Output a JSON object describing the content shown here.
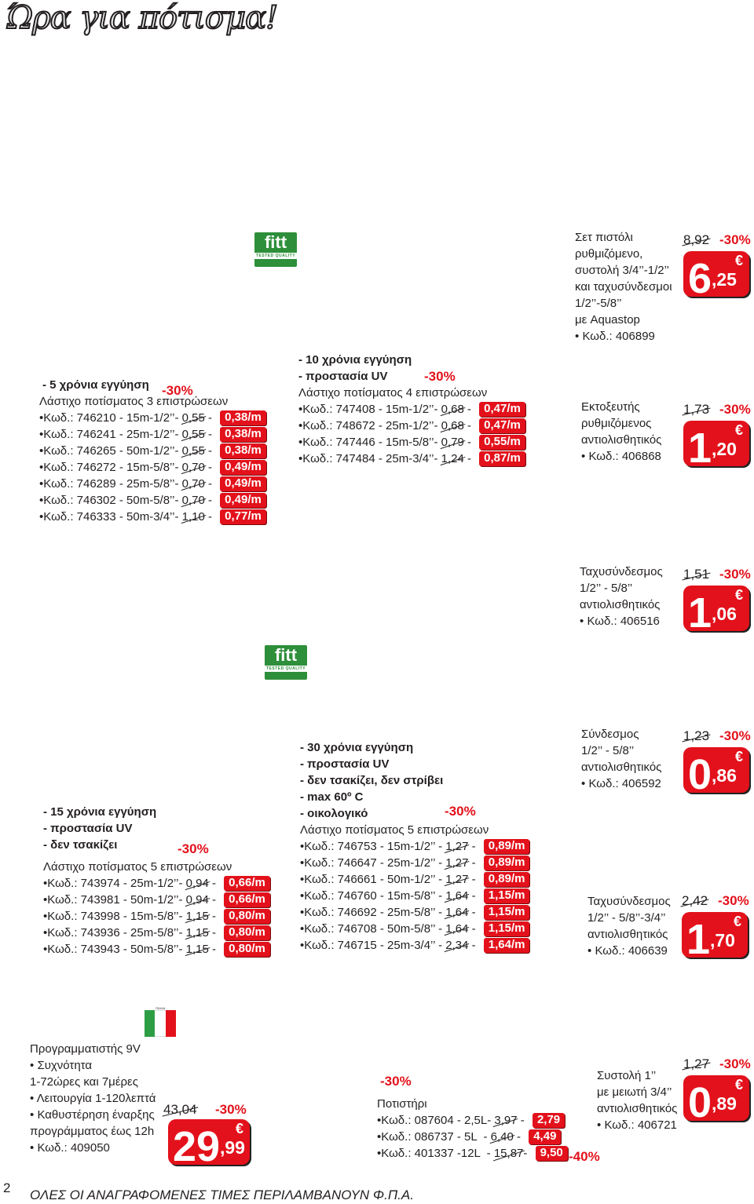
{
  "title": "Ώρα για πότισμα!",
  "brand": {
    "logo": "fitt",
    "tagline": "TESTED QUALITY"
  },
  "bullet": "•",
  "discount": "-30%",
  "discount40": "-40%",
  "hose3": {
    "h1": "- 5 χρόνια εγγύηση",
    "name": "Λάστιχο ποτίσματος 3 επιστρώσεων",
    "rows": [
      {
        "code": "Κωδ.: 746210 - 15m-1/2’’- ",
        "old": "0,55",
        "sep": " - ",
        "new": "0,38/m"
      },
      {
        "code": "Κωδ.: 746241 - 25m-1/2’’- ",
        "old": "0,55",
        "sep": " - ",
        "new": "0,38/m"
      },
      {
        "code": "Κωδ.: 746265 - 50m-1/2’’- ",
        "old": "0,55",
        "sep": " - ",
        "new": "0,38/m"
      },
      {
        "code": "Κωδ.: 746272 - 15m-5/8’’- ",
        "old": "0,70",
        "sep": " - ",
        "new": "0,49/m"
      },
      {
        "code": "Κωδ.: 746289 - 25m-5/8’’- ",
        "old": "0,70",
        "sep": " - ",
        "new": "0,49/m"
      },
      {
        "code": "Κωδ.: 746302 - 50m-5/8’’- ",
        "old": "0,70",
        "sep": " - ",
        "new": "0,49/m"
      },
      {
        "code": "Κωδ.: 746333 - 50m-3/4’’- ",
        "old": "1,10",
        "sep": " - ",
        "new": "0,77/m"
      }
    ]
  },
  "hose4": {
    "h1": "- 10 χρόνια εγγύηση",
    "h2": "- προστασία UV",
    "name": "Λάστιχο ποτίσματος 4 επιστρώσεων",
    "rows": [
      {
        "code": "Κωδ.: 747408 - 15m-1/2’’- ",
        "old": "0,68",
        "sep": " - ",
        "new": "0,47/m"
      },
      {
        "code": "Κωδ.: 748672 - 25m-1/2’’- ",
        "old": "0,68",
        "sep": " - ",
        "new": "0,47/m"
      },
      {
        "code": "Κωδ.: 747446 - 15m-5/8’’- ",
        "old": "0,79",
        "sep": " - ",
        "new": "0,55/m"
      },
      {
        "code": "Κωδ.: 747484 - 25m-3/4’’- ",
        "old": "1,24",
        "sep": " - ",
        "new": "0,87/m"
      }
    ]
  },
  "hose5a": {
    "h1": "- 15 χρόνια εγγύηση",
    "h2": "- προστασία UV",
    "h3": "- δεν τσακίζει",
    "name": "Λάστιχο ποτίσματος 5 επιστρώσεων",
    "rows": [
      {
        "code": "Κωδ.: 743974 - 25m-1/2’’- ",
        "old": "0,94",
        "sep": " - ",
        "new": "0,66/m"
      },
      {
        "code": "Κωδ.: 743981 - 50m-1/2’’- ",
        "old": "0,94",
        "sep": " - ",
        "new": "0,66/m"
      },
      {
        "code": "Κωδ.: 743998 - 15m-5/8’’- ",
        "old": "1,15",
        "sep": " - ",
        "new": "0,80/m"
      },
      {
        "code": "Κωδ.: 743936 - 25m-5/8’’- ",
        "old": "1,15",
        "sep": " - ",
        "new": "0,80/m"
      },
      {
        "code": "Κωδ.: 743943 - 50m-5/8’’- ",
        "old": "1,15",
        "sep": " - ",
        "new": "0,80/m"
      }
    ]
  },
  "hose5b": {
    "h1": "- 30 χρόνια εγγύηση",
    "h2": "- προστασία UV",
    "h3": "- δεν τσακίζει, δεν στρίβει",
    "h4": "- max 60º C",
    "h5": "- οικολογικό",
    "name": "Λάστιχο ποτίσματος 5 επιστρώσεων",
    "rows": [
      {
        "code": "Κωδ.: 746753 - 15m-1/2’’ - ",
        "old": "1,27",
        "sep": " - ",
        "new": "0,89/m"
      },
      {
        "code": "Κωδ.: 746647 - 25m-1/2’’ - ",
        "old": "1,27",
        "sep": " - ",
        "new": "0,89/m"
      },
      {
        "code": "Κωδ.: 746661 - 50m-1/2’’ - ",
        "old": "1,27",
        "sep": " - ",
        "new": "0,89/m"
      },
      {
        "code": "Κωδ.: 746760 - 15m-5/8’’ - ",
        "old": "1,64",
        "sep": " - ",
        "new": "1,15/m"
      },
      {
        "code": "Κωδ.: 746692 - 25m-5/8’’ - ",
        "old": "1,64",
        "sep": " - ",
        "new": "1,15/m"
      },
      {
        "code": "Κωδ.: 746708 - 50m-5/8’’ - ",
        "old": "1,64",
        "sep": " - ",
        "new": "1,15/m"
      },
      {
        "code": "Κωδ.: 746715 - 25m-3/4’’ - ",
        "old": "2,34",
        "sep": " - ",
        "new": "1,64/m"
      }
    ]
  },
  "p1": {
    "lines": [
      "Σετ πιστόλι",
      "ρυθμιζόμενο,",
      "συστολή 3/4’’-1/2’’",
      "και ταχυσύνδεσμοι",
      "1/2’’-5/8’’",
      "με Aquastop"
    ],
    "code": "Κωδ.: 406899",
    "old": "8,92",
    "int": "6",
    "dec": ",25",
    "cur": "€"
  },
  "p2": {
    "lines": [
      "Εκτοξευτής",
      "ρυθμιζόμενος",
      "αντιολισθητικός"
    ],
    "code": "Κωδ.: 406868",
    "old": "1,73",
    "int": "1",
    "dec": ",20",
    "cur": "€"
  },
  "p3": {
    "lines": [
      "Ταχυσύνδεσμος",
      "1/2’’ - 5/8’’",
      "αντιολισθητικός"
    ],
    "code": "Κωδ.: 406516",
    "old": "1,51",
    "int": "1",
    "dec": ",06",
    "cur": "€"
  },
  "p4": {
    "lines": [
      "Σύνδεσμος",
      "1/2’’ - 5/8’’",
      "αντιολισθητικός"
    ],
    "code": "Κωδ.: 406592",
    "old": "1,23",
    "int": "0",
    "dec": ",86",
    "cur": "€"
  },
  "p5": {
    "lines": [
      "Ταχυσύνδεσμος",
      "1/2’’ - 5/8’’-3/4’’",
      "αντιολισθητικός"
    ],
    "code": "Κωδ.: 406639",
    "old": "2,42",
    "int": "1",
    "dec": ",70",
    "cur": "€"
  },
  "p6": {
    "lines": [
      "Συστολή 1’’",
      "με μειωτή 3/4’’",
      "αντιολισθητικός"
    ],
    "code": "Κωδ.: 406721",
    "old": "1,27",
    "int": "0",
    "dec": ",89",
    "cur": "€"
  },
  "timer": {
    "l1": "Προγραμματιστής 9V",
    "b1": "Συχνότητα",
    "l2": "1-72ώρες και 7μέρες",
    "b2": "Λειτουργία 1-120λεπτά",
    "b3": "Καθυστέρηση έναρξης",
    "l3": "προγράμματος έως 12h",
    "code": "Κωδ.: 409050",
    "old": "43,04",
    "int": "29",
    "dec": ",99",
    "cur": "€",
    "flag_caption": "ΙΤΑΛΙΑ"
  },
  "can": {
    "name": "Ποτιστήρι",
    "rows": [
      {
        "code": "Κωδ.: 087604 - 2,5L- ",
        "old": "3,97",
        "sep": " - ",
        "new": "2,79"
      },
      {
        "code": "Κωδ.: 086737 - 5L  - ",
        "old": "6,40",
        "sep": " - ",
        "new": "4,49"
      },
      {
        "code": "Κωδ.: 401337 -12L  - ",
        "old": "15,87",
        "sep": "- ",
        "new": "9,50"
      }
    ]
  },
  "footer": {
    "page": "2",
    "note": "ΟΛΕΣ ΟΙ ΑΝΑΓΡΑΦΟΜΕΝΕΣ ΤΙΜΕΣ ΠΕΡΙΛΑΜΒΑΝΟΥΝ Φ.Π.Α."
  }
}
